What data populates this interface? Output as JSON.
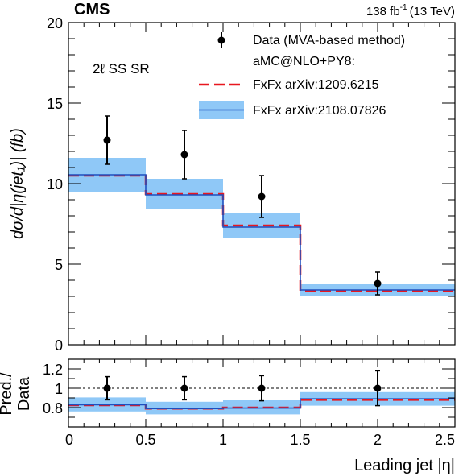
{
  "header": {
    "experiment": "CMS",
    "lumi": "138 fb",
    "lumi_exp": "-1",
    "energy": "(13 TeV)"
  },
  "colors": {
    "data": "#000000",
    "fxfx_old": "#e8171f",
    "fxfx_new": "#1f4fbf",
    "band": "#8fc8f7"
  },
  "chart_data": [
    {
      "type": "line",
      "title": "",
      "annotation": "2ℓ SS SR",
      "ylabel": "dσ/d|η(jet₁)| (fb)",
      "xlabel": "",
      "xlim": [
        0,
        2.5
      ],
      "ylim": [
        0,
        20
      ],
      "yticks": [
        0,
        5,
        10,
        15,
        20
      ],
      "grid": false,
      "legend_placement": "top-right",
      "legend_header": "aMC@NLO+PY8:",
      "bin_edges": [
        0,
        0.5,
        1,
        1.5,
        2.5
      ],
      "data": {
        "name": "Data (MVA-based method)",
        "x": [
          0.25,
          0.75,
          1.25,
          2.0
        ],
        "y": [
          12.7,
          11.8,
          9.2,
          3.8
        ],
        "err_up": [
          1.5,
          1.5,
          1.3,
          0.7
        ],
        "err_down": [
          1.5,
          1.5,
          1.3,
          0.7
        ]
      },
      "series": [
        {
          "name": "FxFx arXiv:1209.6215",
          "style": "dashed",
          "values": [
            10.5,
            9.35,
            7.4,
            3.35
          ]
        },
        {
          "name": "FxFx arXiv:2108.07826",
          "style": "solid",
          "values": [
            10.55,
            9.3,
            7.3,
            3.4
          ],
          "band_lo": [
            9.5,
            8.4,
            6.6,
            3.05
          ],
          "band_hi": [
            11.6,
            10.3,
            8.15,
            3.75
          ]
        }
      ]
    },
    {
      "type": "line",
      "title": "",
      "ylabel": "Pred./Data",
      "xlabel": "Leading jet |η|",
      "xlim": [
        0,
        2.5
      ],
      "ylim": [
        0.6,
        1.3
      ],
      "xticks": [
        "0",
        "0.5",
        "1",
        "1.5",
        "2",
        "2.5"
      ],
      "yticks": [
        "0.8",
        "1",
        "1.2"
      ],
      "reference_line": 1,
      "bin_edges": [
        0,
        0.5,
        1,
        1.5,
        2.5
      ],
      "data": {
        "x": [
          0.25,
          0.75,
          1.25,
          2.0
        ],
        "y": [
          1,
          1,
          1,
          1
        ],
        "err_up": [
          0.12,
          0.12,
          0.13,
          0.18
        ],
        "err_down": [
          0.12,
          0.12,
          0.13,
          0.18
        ]
      },
      "series": [
        {
          "name": "FxFx arXiv:1209.6215",
          "style": "dashed",
          "values": [
            0.825,
            0.79,
            0.8,
            0.88
          ]
        },
        {
          "name": "FxFx arXiv:2108.07826",
          "style": "solid",
          "values": [
            0.83,
            0.79,
            0.795,
            0.89
          ],
          "band_lo": [
            0.76,
            0.73,
            0.73,
            0.82
          ],
          "band_hi": [
            0.905,
            0.86,
            0.875,
            0.96
          ]
        }
      ]
    }
  ]
}
